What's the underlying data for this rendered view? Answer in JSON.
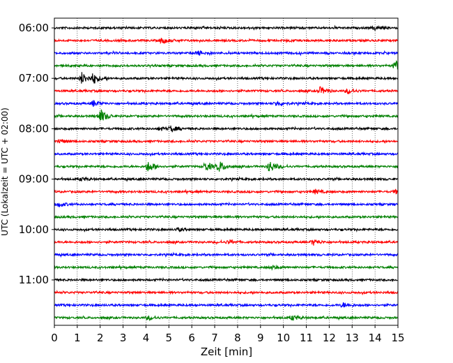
{
  "chart_data": {
    "type": "line",
    "title": "",
    "xlabel": "Zeit  [min]",
    "ylabel": "UTC (Lokalzeit = UTC + 02:00)",
    "xlim": [
      0,
      15
    ],
    "x_ticks": [
      0,
      1,
      2,
      3,
      4,
      5,
      6,
      7,
      8,
      9,
      10,
      11,
      12,
      13,
      14,
      15
    ],
    "y_ticks": [
      "06:00",
      "07:00",
      "08:00",
      "09:00",
      "10:00",
      "11:00"
    ],
    "grid": "vertical dotted",
    "colors": [
      "#000000",
      "#ff0000",
      "#0000ff",
      "#008000"
    ],
    "rows": [
      {
        "start": "06:00",
        "color": "#000000",
        "events": [
          {
            "t": 14.0,
            "amp": 0.35
          }
        ]
      },
      {
        "start": "06:15",
        "color": "#ff0000",
        "events": [
          {
            "t": 4.7,
            "amp": 0.5
          }
        ]
      },
      {
        "start": "06:30",
        "color": "#0000ff",
        "events": [
          {
            "t": 6.3,
            "amp": 0.35
          }
        ]
      },
      {
        "start": "06:45",
        "color": "#008000",
        "events": [
          {
            "t": 14.9,
            "amp": 0.9
          }
        ]
      },
      {
        "start": "07:00",
        "color": "#000000",
        "events": [
          {
            "t": 1.2,
            "amp": 1.0
          },
          {
            "t": 1.7,
            "amp": 0.8
          }
        ]
      },
      {
        "start": "07:15",
        "color": "#ff0000",
        "events": [
          {
            "t": 11.6,
            "amp": 0.6
          },
          {
            "t": 12.8,
            "amp": 0.4
          }
        ]
      },
      {
        "start": "07:30",
        "color": "#0000ff",
        "events": [
          {
            "t": 1.7,
            "amp": 0.5
          },
          {
            "t": 9.7,
            "amp": 0.4
          }
        ]
      },
      {
        "start": "07:45",
        "color": "#008000",
        "events": [
          {
            "t": 2.0,
            "amp": 1.2
          }
        ]
      },
      {
        "start": "08:00",
        "color": "#000000",
        "events": [
          {
            "t": 5.1,
            "amp": 0.5
          },
          {
            "t": 4.6,
            "amp": 0.3
          }
        ]
      },
      {
        "start": "08:15",
        "color": "#ff0000",
        "events": [
          {
            "t": 0.2,
            "amp": 0.3
          }
        ]
      },
      {
        "start": "08:30",
        "color": "#0000ff",
        "events": []
      },
      {
        "start": "08:45",
        "color": "#008000",
        "events": [
          {
            "t": 4.1,
            "amp": 0.9
          },
          {
            "t": 6.6,
            "amp": 0.8
          },
          {
            "t": 7.2,
            "amp": 0.9
          },
          {
            "t": 9.4,
            "amp": 1.0
          }
        ]
      },
      {
        "start": "09:00",
        "color": "#000000",
        "events": [
          {
            "t": 1.2,
            "amp": 0.25
          }
        ]
      },
      {
        "start": "09:15",
        "color": "#ff0000",
        "events": [
          {
            "t": 11.4,
            "amp": 0.35
          },
          {
            "t": 14.9,
            "amp": 0.35
          }
        ]
      },
      {
        "start": "09:30",
        "color": "#0000ff",
        "events": [
          {
            "t": 0.2,
            "amp": 0.4
          }
        ]
      },
      {
        "start": "09:45",
        "color": "#008000",
        "events": []
      },
      {
        "start": "10:00",
        "color": "#000000",
        "events": [
          {
            "t": 5.4,
            "amp": 0.25
          }
        ]
      },
      {
        "start": "10:15",
        "color": "#ff0000",
        "events": [
          {
            "t": 7.6,
            "amp": 0.3
          },
          {
            "t": 11.3,
            "amp": 0.5
          }
        ]
      },
      {
        "start": "10:30",
        "color": "#0000ff",
        "events": []
      },
      {
        "start": "10:45",
        "color": "#008000",
        "events": [
          {
            "t": 9.5,
            "amp": 0.3
          }
        ]
      },
      {
        "start": "11:00",
        "color": "#000000",
        "events": []
      },
      {
        "start": "11:15",
        "color": "#ff0000",
        "events": []
      },
      {
        "start": "11:30",
        "color": "#0000ff",
        "events": [
          {
            "t": 12.6,
            "amp": 0.4
          }
        ]
      },
      {
        "start": "11:45",
        "color": "#008000",
        "events": [
          {
            "t": 4.1,
            "amp": 0.3
          },
          {
            "t": 10.4,
            "amp": 0.4
          }
        ]
      }
    ]
  }
}
